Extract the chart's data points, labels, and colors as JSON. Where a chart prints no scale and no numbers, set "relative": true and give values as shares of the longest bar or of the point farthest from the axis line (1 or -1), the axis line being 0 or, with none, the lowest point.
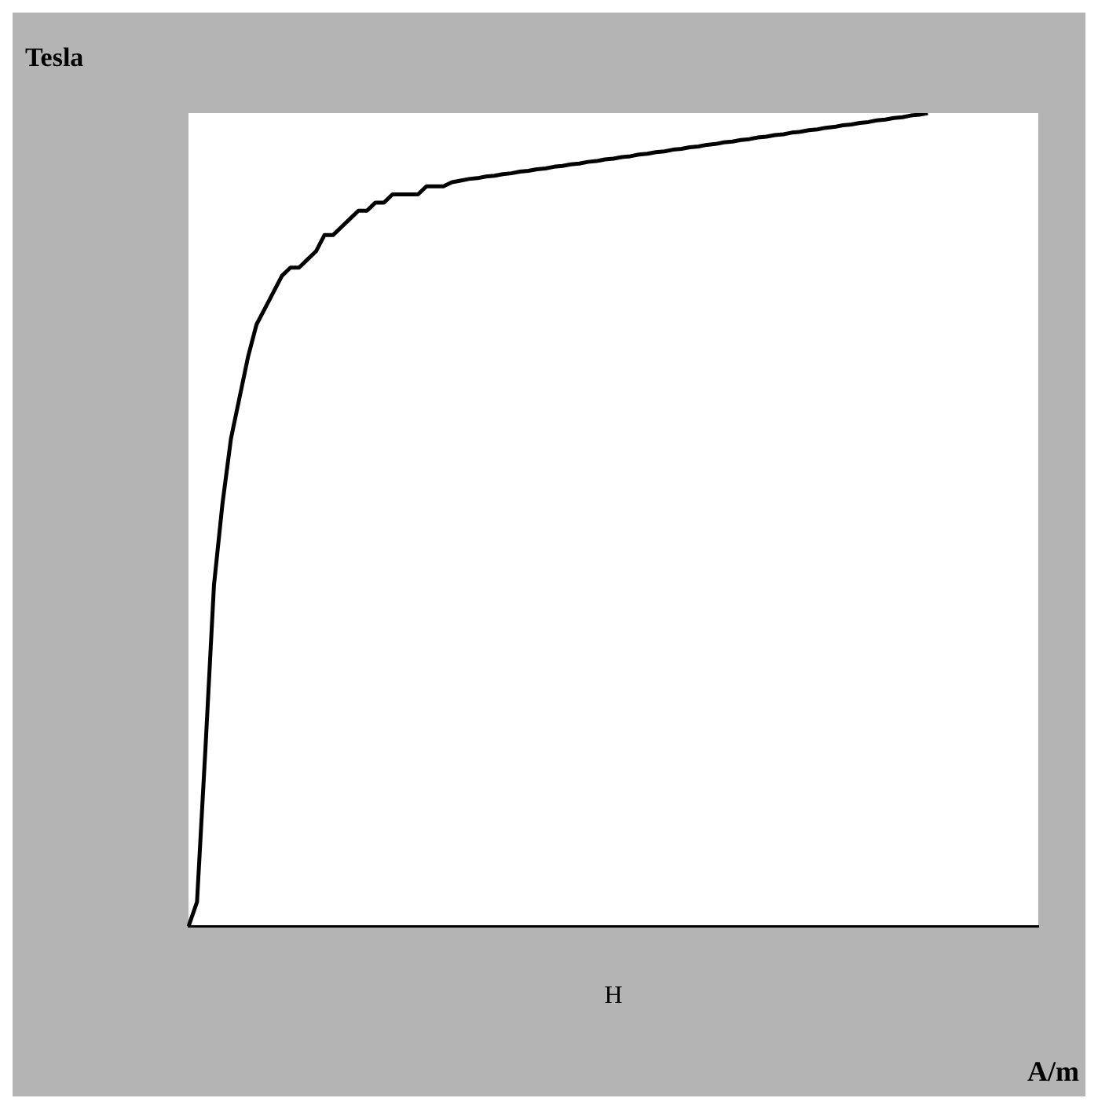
{
  "chart_data": {
    "type": "line",
    "ylabel": "Tesla",
    "xlabel": "H",
    "annotations": [
      "A/m"
    ],
    "relative": true,
    "legend": false,
    "grid": false,
    "marker": "none",
    "categories": [
      null,
      null,
      null,
      null,
      null,
      null,
      null,
      null,
      null,
      null,
      null,
      null,
      null,
      null,
      null,
      null,
      null,
      null,
      null,
      null,
      null,
      null,
      null,
      null,
      null,
      null,
      null,
      null,
      null,
      null,
      null,
      null,
      null,
      null,
      null,
      null,
      null,
      null,
      null,
      null,
      null,
      null,
      null,
      null,
      null,
      null,
      null,
      null,
      null,
      null,
      null,
      null,
      null,
      null,
      null,
      null,
      null,
      null,
      null,
      null,
      null,
      null,
      null,
      null,
      null,
      null,
      null,
      null,
      null,
      null,
      null,
      null,
      null,
      null,
      null,
      null,
      null,
      null,
      null,
      null,
      null,
      null,
      null,
      null,
      null,
      null,
      null,
      null,
      null,
      null,
      null,
      null,
      null,
      null,
      null,
      null,
      null,
      null,
      null,
      null,
      null
    ],
    "series": [
      {
        "color": "#000000",
        "values": [
          0,
          0.03,
          0.22,
          0.42,
          0.52,
          0.6,
          0.65,
          0.7,
          0.74,
          0.76,
          0.78,
          0.8,
          0.81,
          0.81,
          0.82,
          0.83,
          0.85,
          0.85,
          0.86,
          0.87,
          0.88,
          0.88,
          0.89,
          0.89,
          0.9,
          0.9,
          0.9,
          0.9,
          0.91,
          0.91,
          0.91,
          0.915,
          0.917,
          0.919,
          0.92,
          0.922,
          0.923,
          0.925,
          0.926,
          0.928,
          0.929,
          0.931,
          0.932,
          0.934,
          0.935,
          0.937,
          0.938,
          0.94,
          0.941,
          0.943,
          0.944,
          0.946,
          0.947,
          0.949,
          0.95,
          0.952,
          0.953,
          0.955,
          0.956,
          0.958,
          0.959,
          0.961,
          0.962,
          0.964,
          0.965,
          0.967,
          0.968,
          0.97,
          0.971,
          0.973,
          0.974,
          0.976,
          0.977,
          0.979,
          0.98,
          0.982,
          0.983,
          0.985,
          0.986,
          0.988,
          0.989,
          0.991,
          0.992,
          0.994,
          0.995,
          0.997,
          0.998,
          1.0,
          null,
          null,
          null,
          null,
          null,
          null,
          null,
          null,
          null,
          null,
          null,
          null,
          null
        ]
      }
    ]
  }
}
